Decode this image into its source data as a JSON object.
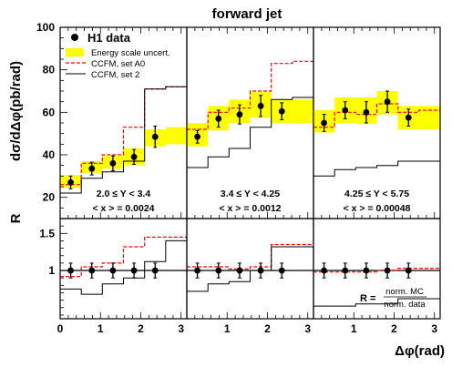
{
  "chart_data": {
    "type": "line",
    "title": "forward jet",
    "ylabel_top": "dσ/dΔφ(pb/rad)",
    "ylabel_bottom": "R",
    "xlabel": "Δφ(rad)",
    "xlim": [
      0,
      3.14159
    ],
    "xticks": [
      "0",
      "1",
      "2",
      "3"
    ],
    "ylim_top": [
      10,
      100
    ],
    "yticks_top": [
      "20",
      "40",
      "60",
      "80",
      "100"
    ],
    "ylim_bottom": [
      0.35,
      1.7
    ],
    "yticks_bottom": [
      "1",
      "1.5"
    ],
    "bin_edges": [
      0,
      0.5236,
      1.0472,
      1.5708,
      2.0944,
      2.618,
      3.1416
    ],
    "bin_centers": [
      0.2618,
      0.7854,
      1.309,
      1.8326,
      2.3562,
      2.8798
    ],
    "legend": {
      "h1": "H1 data",
      "band": "Energy scale uncert.",
      "a0": "CCFM, set A0",
      "set2": "CCFM, set 2"
    },
    "colors": {
      "band": "#ffff00",
      "a0": "#ff0000",
      "set2": "#000000",
      "data": "#000000"
    },
    "panels": [
      {
        "range_label": "2.0 ≤ Y < 3.4",
        "x_label": "< x > = 0.0024",
        "data": [
          27,
          33.5,
          36,
          39,
          48.5,
          null
        ],
        "data_err": [
          3,
          3,
          3.5,
          3.5,
          5,
          null
        ],
        "band_low": [
          24.5,
          31.5,
          33.5,
          35,
          44,
          45
        ],
        "band_high": [
          30.5,
          37,
          39.5,
          43,
          52,
          53
        ],
        "ccfm_a0": [
          26,
          36,
          40,
          53,
          71,
          72
        ],
        "ccfm_set2": [
          22,
          29,
          32,
          37,
          71,
          72
        ],
        "ratio": [
          1,
          1,
          1,
          1,
          1,
          null
        ],
        "ratio_err": [
          0.1,
          0.1,
          0.1,
          0.1,
          0.1,
          null
        ],
        "ratio_a0": [
          0.92,
          1.05,
          1.1,
          1.32,
          1.45,
          1.45
        ],
        "ratio_set2": [
          0.75,
          0.68,
          0.82,
          0.9,
          1.12,
          1.4
        ]
      },
      {
        "range_label": "3.4 ≤ Y < 4.25",
        "x_label": "< x > = 0.0012",
        "data": [
          48.5,
          57,
          59,
          63,
          60.5,
          null
        ],
        "data_err": [
          3,
          4,
          4.5,
          5,
          4,
          null
        ],
        "band_low": [
          44,
          51.5,
          55,
          57.5,
          55,
          55
        ],
        "band_high": [
          55,
          63,
          66,
          69.5,
          66,
          66
        ],
        "ccfm_a0": [
          52,
          60,
          62,
          70,
          83,
          84
        ],
        "ccfm_set2": [
          34,
          39,
          43,
          53,
          66,
          67
        ],
        "ratio": [
          1,
          1,
          1,
          1,
          1,
          null
        ],
        "ratio_err": [
          0.1,
          0.1,
          0.1,
          0.1,
          0.1,
          null
        ],
        "ratio_a0": [
          1.05,
          1.05,
          1.02,
          1.05,
          1.35,
          1.35
        ],
        "ratio_set2": [
          0.72,
          0.82,
          0.85,
          1.0,
          1.32,
          1.32
        ]
      },
      {
        "range_label": "4.25 ≤ Y < 5.75",
        "x_label": "< x > = 0.00048",
        "data": [
          55,
          61,
          60,
          65,
          57.5,
          null
        ],
        "data_err": [
          4,
          4,
          5,
          5,
          4,
          null
        ],
        "band_low": [
          50.5,
          55,
          54.5,
          59,
          52,
          52
        ],
        "band_high": [
          61,
          67,
          67,
          70,
          63,
          63
        ],
        "ccfm_a0": [
          53,
          60,
          59,
          64,
          60,
          61
        ],
        "ccfm_set2": [
          30,
          33,
          34,
          35,
          37,
          37
        ],
        "ratio": [
          1,
          1,
          1,
          1,
          1,
          null
        ],
        "ratio_err": [
          0.1,
          0.1,
          0.1,
          0.1,
          0.1,
          null
        ],
        "ratio_a0": [
          0.98,
          0.98,
          0.98,
          1.0,
          1.03,
          1.03
        ],
        "ratio_set2": [
          0.52,
          0.52,
          0.55,
          0.55,
          0.62,
          0.62
        ]
      }
    ],
    "ratio_legend": {
      "prefix": "R =",
      "numerator": "norm. MC",
      "denominator": "norm. data"
    }
  }
}
